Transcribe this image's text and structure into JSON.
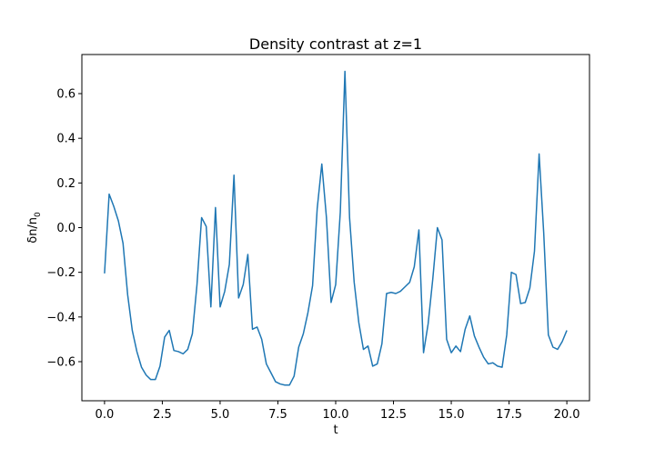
{
  "chart_data": {
    "type": "line",
    "title": "Density contrast at z=1",
    "xlabel": "t",
    "ylabel_base": "δn/n",
    "ylabel_subscript": "0",
    "xlim": [
      -0.98,
      20.98
    ],
    "ylim": [
      -0.775,
      0.775
    ],
    "x_ticks": [
      0.0,
      2.5,
      5.0,
      7.5,
      10.0,
      12.5,
      15.0,
      17.5,
      20.0
    ],
    "x_tick_labels": [
      "0.0",
      "2.5",
      "5.0",
      "7.5",
      "10.0",
      "12.5",
      "15.0",
      "17.5",
      "20.0"
    ],
    "y_ticks": [
      -0.6,
      -0.4,
      -0.2,
      0.0,
      0.2,
      0.4,
      0.6
    ],
    "y_tick_labels": [
      "−0.6",
      "−0.4",
      "−0.2",
      "0.0",
      "0.2",
      "0.4",
      "0.6"
    ],
    "grid": false,
    "series": [
      {
        "color": "#1f77b4",
        "x": [
          0.0,
          0.2,
          0.4,
          0.6,
          0.8,
          1.0,
          1.2,
          1.4,
          1.6,
          1.8,
          2.0,
          2.2,
          2.4,
          2.6,
          2.8,
          3.0,
          3.2,
          3.4,
          3.6,
          3.8,
          4.0,
          4.2,
          4.4,
          4.6,
          4.8,
          5.0,
          5.2,
          5.4,
          5.6,
          5.8,
          6.0,
          6.2,
          6.4,
          6.6,
          6.8,
          7.0,
          7.2,
          7.4,
          7.6,
          7.8,
          8.0,
          8.2,
          8.4,
          8.6,
          8.8,
          9.0,
          9.2,
          9.4,
          9.6,
          9.8,
          10.0,
          10.2,
          10.4,
          10.6,
          10.8,
          11.0,
          11.2,
          11.4,
          11.6,
          11.8,
          12.0,
          12.2,
          12.4,
          12.6,
          12.8,
          13.0,
          13.2,
          13.4,
          13.6,
          13.8,
          14.0,
          14.2,
          14.4,
          14.6,
          14.8,
          15.0,
          15.2,
          15.4,
          15.6,
          15.8,
          16.0,
          16.2,
          16.4,
          16.6,
          16.8,
          17.0,
          17.2,
          17.4,
          17.6,
          17.8,
          18.0,
          18.2,
          18.4,
          18.6,
          18.8,
          19.0,
          19.2,
          19.4,
          19.6,
          19.8,
          20.0
        ],
        "y": [
          -0.205,
          0.15,
          0.095,
          0.03,
          -0.07,
          -0.3,
          -0.46,
          -0.555,
          -0.625,
          -0.66,
          -0.68,
          -0.68,
          -0.62,
          -0.49,
          -0.46,
          -0.55,
          -0.555,
          -0.565,
          -0.545,
          -0.475,
          -0.255,
          0.045,
          0.005,
          -0.355,
          0.09,
          -0.355,
          -0.285,
          -0.165,
          0.235,
          -0.315,
          -0.255,
          -0.12,
          -0.455,
          -0.445,
          -0.5,
          -0.61,
          -0.65,
          -0.69,
          -0.7,
          -0.705,
          -0.705,
          -0.665,
          -0.535,
          -0.475,
          -0.38,
          -0.26,
          0.085,
          0.285,
          0.045,
          -0.335,
          -0.255,
          0.07,
          0.7,
          0.045,
          -0.245,
          -0.425,
          -0.545,
          -0.53,
          -0.62,
          -0.61,
          -0.52,
          -0.295,
          -0.29,
          -0.295,
          -0.285,
          -0.265,
          -0.245,
          -0.175,
          -0.01,
          -0.56,
          -0.43,
          -0.23,
          0.0,
          -0.055,
          -0.5,
          -0.56,
          -0.53,
          -0.555,
          -0.455,
          -0.395,
          -0.485,
          -0.535,
          -0.58,
          -0.61,
          -0.605,
          -0.62,
          -0.625,
          -0.48,
          -0.2,
          -0.21,
          -0.34,
          -0.335,
          -0.27,
          -0.105,
          0.33,
          -0.025,
          -0.48,
          -0.535,
          -0.545,
          -0.51,
          -0.46
        ]
      }
    ]
  }
}
